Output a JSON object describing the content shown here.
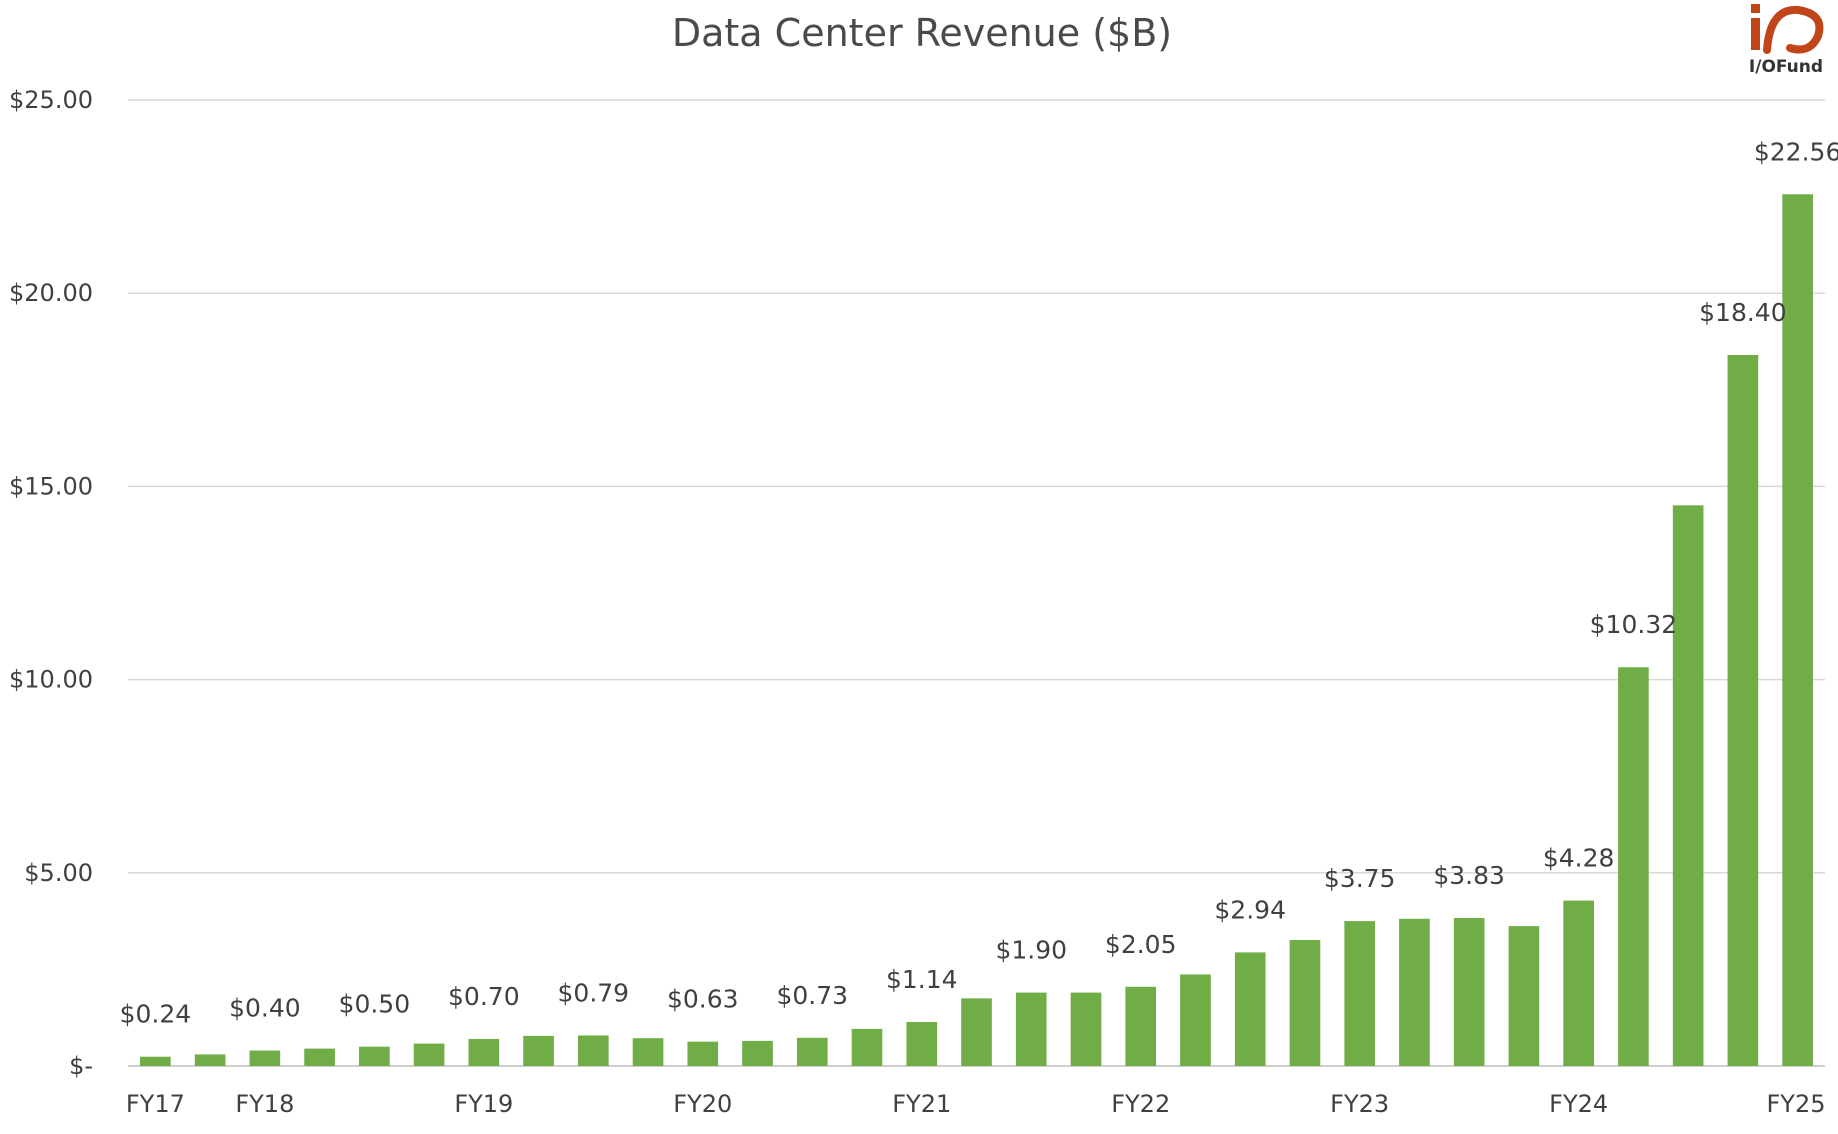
{
  "logo": {
    "text": "I/OFund"
  },
  "chart_data": {
    "type": "bar",
    "title": "Data Center Revenue ($B)",
    "xlabel": "",
    "ylabel": "",
    "ylim": [
      0,
      25
    ],
    "grid": true,
    "legend": "none",
    "color": "#70ad47",
    "y_ticks": [
      {
        "value": 0,
        "label": "$-"
      },
      {
        "value": 5,
        "label": "$5.00"
      },
      {
        "value": 10,
        "label": "$10.00"
      },
      {
        "value": 15,
        "label": "$15.00"
      },
      {
        "value": 20,
        "label": "$20.00"
      },
      {
        "value": 25,
        "label": "$25.00"
      }
    ],
    "x_ticks": [
      {
        "index": 0,
        "label": "FY17"
      },
      {
        "index": 2,
        "label": "FY18"
      },
      {
        "index": 6,
        "label": "FY19"
      },
      {
        "index": 10,
        "label": "FY20"
      },
      {
        "index": 14,
        "label": "FY21"
      },
      {
        "index": 18,
        "label": "FY22"
      },
      {
        "index": 22,
        "label": "FY23"
      },
      {
        "index": 26,
        "label": "FY24"
      },
      {
        "index": 30,
        "label": "FY25"
      }
    ],
    "values": [
      0.24,
      0.3,
      0.4,
      0.45,
      0.5,
      0.58,
      0.7,
      0.78,
      0.79,
      0.72,
      0.63,
      0.65,
      0.73,
      0.96,
      1.14,
      1.75,
      1.9,
      1.9,
      2.05,
      2.37,
      2.94,
      3.26,
      3.75,
      3.81,
      3.83,
      3.62,
      4.28,
      10.32,
      14.51,
      18.4,
      22.56
    ],
    "data_labels": [
      {
        "index": 0,
        "label": "$0.24"
      },
      {
        "index": 2,
        "label": "$0.40"
      },
      {
        "index": 4,
        "label": "$0.50"
      },
      {
        "index": 6,
        "label": "$0.70"
      },
      {
        "index": 8,
        "label": "$0.79"
      },
      {
        "index": 10,
        "label": "$0.63"
      },
      {
        "index": 12,
        "label": "$0.73"
      },
      {
        "index": 14,
        "label": "$1.14"
      },
      {
        "index": 16,
        "label": "$1.90"
      },
      {
        "index": 18,
        "label": "$2.05"
      },
      {
        "index": 20,
        "label": "$2.94"
      },
      {
        "index": 22,
        "label": "$3.75"
      },
      {
        "index": 24,
        "label": "$3.83"
      },
      {
        "index": 26,
        "label": "$4.28"
      },
      {
        "index": 27,
        "label": "$10.32"
      },
      {
        "index": 29,
        "label": "$18.40"
      },
      {
        "index": 30,
        "label": "$22.56"
      }
    ]
  }
}
